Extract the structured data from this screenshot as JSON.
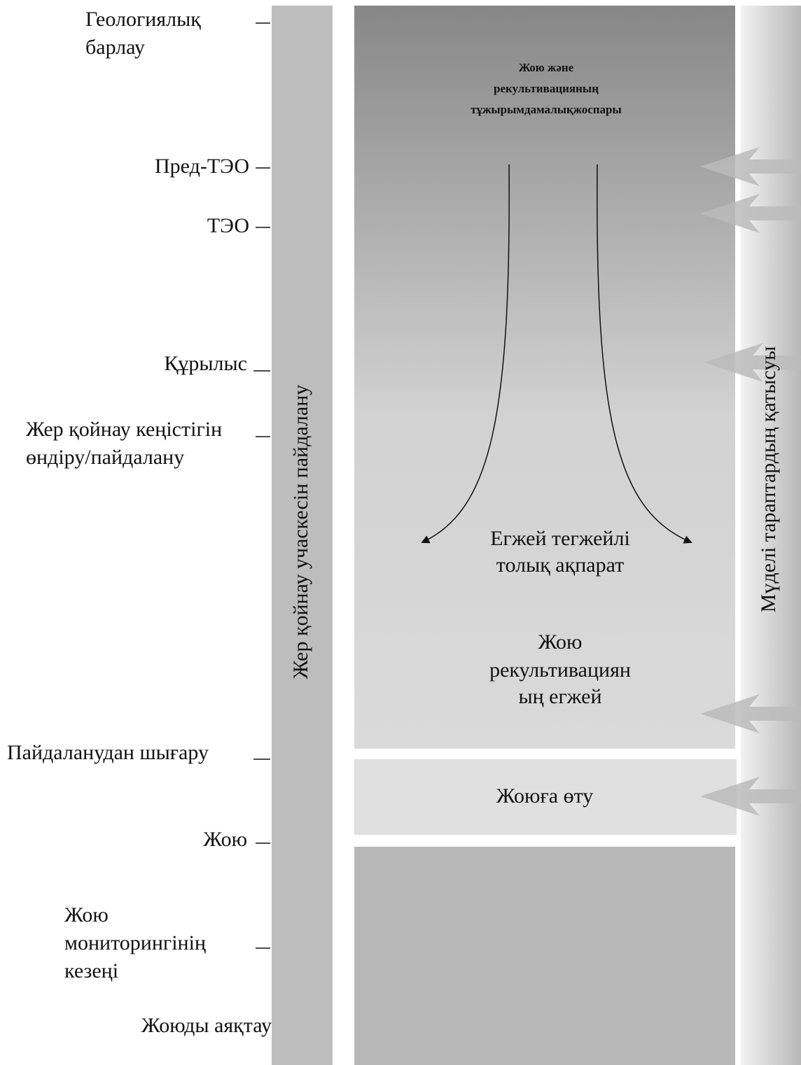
{
  "stages": [
    {
      "lines": [
        "Геологиялық",
        "барлау"
      ]
    },
    {
      "lines": [
        "Пред-ТЭО"
      ]
    },
    {
      "lines": [
        "ТЭО"
      ]
    },
    {
      "lines": [
        "Құрылыс"
      ]
    },
    {
      "lines": [
        "Жер қойнау кеңістігін",
        "өндіру/пайдалану"
      ]
    },
    {
      "lines": [
        "Пайдаланудан шығару"
      ]
    },
    {
      "lines": [
        "Жою"
      ]
    },
    {
      "lines": [
        "Жою",
        "мониторингінің",
        "кезеңі"
      ]
    },
    {
      "lines": [
        "Жоюды аяқтау"
      ]
    }
  ],
  "left_bar": {
    "label": "Жер қойнау учаскесін пайдалану"
  },
  "right_bar": {
    "label": "Мүделі тараптардың қатысуы"
  },
  "main_box": {
    "plan": [
      "Жою және",
      "рекультивацияның",
      "тұжырымдамалықжоспары"
    ],
    "detail_info": [
      "Егжей тегжейлі",
      "толық ақпарат"
    ],
    "detail_plan": [
      "Жою",
      "рекультивациян",
      "ың егжей"
    ]
  },
  "transition_box": {
    "label": "Жоюға өту"
  }
}
